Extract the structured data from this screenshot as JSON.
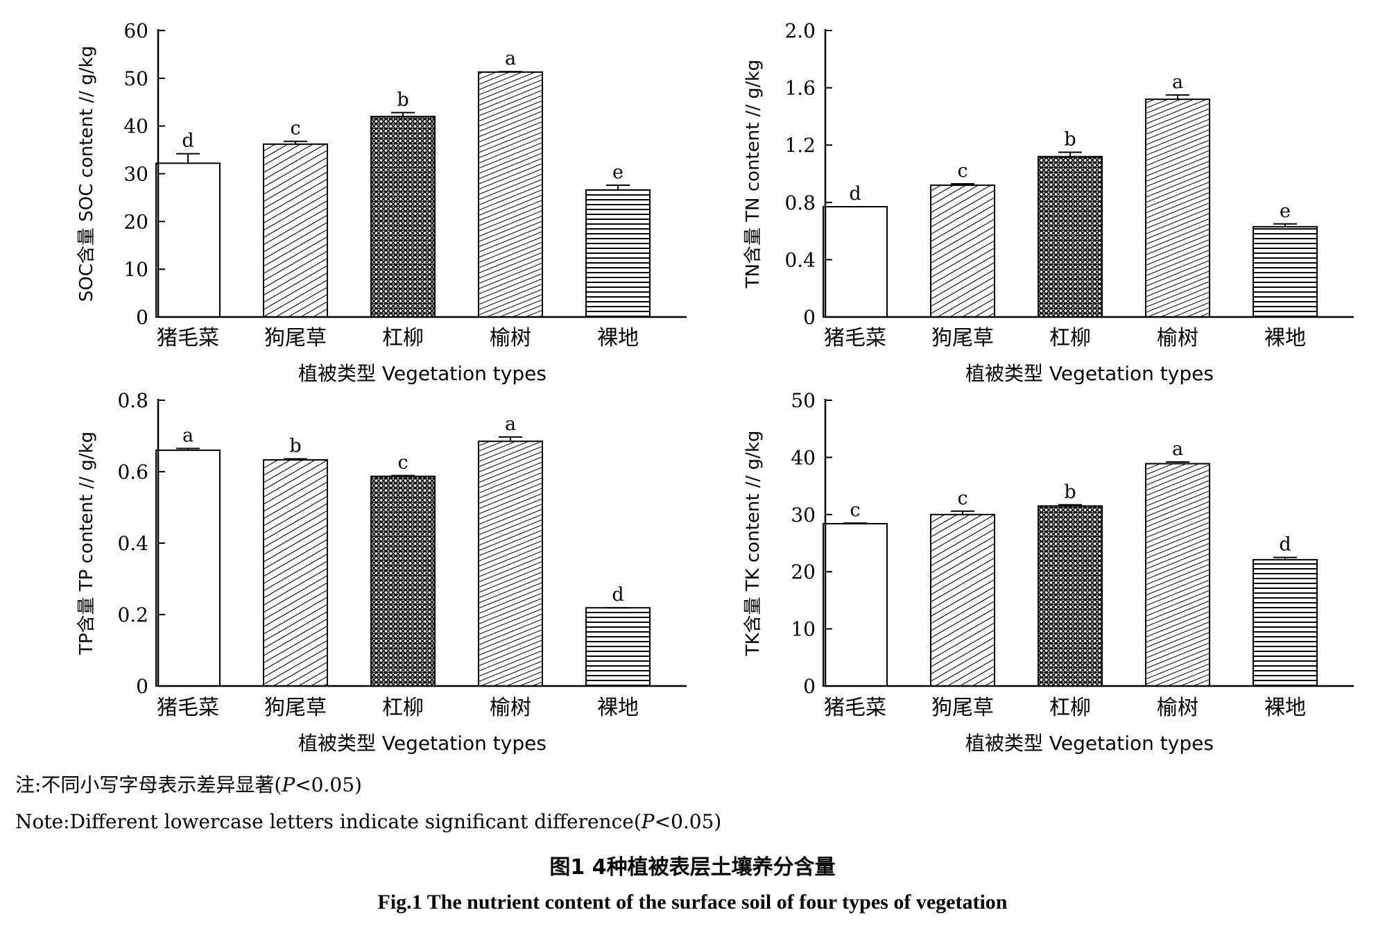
{
  "chart_data": [
    {
      "type": "bar",
      "ylabel": "SOC含量 SOC content // g/kg",
      "xlabel": "植被类型 Vegetation types",
      "categories": [
        "猪毛菜",
        "狗尾草",
        "杠柳",
        "榆树",
        "裸地"
      ],
      "values": [
        32.2,
        36.2,
        42.0,
        51.3,
        26.6
      ],
      "errors": [
        2.0,
        0.6,
        0.8,
        0.1,
        1.0
      ],
      "sig_labels": [
        "d",
        "c",
        "b",
        "a",
        "e"
      ],
      "ylim": [
        0,
        60
      ],
      "yticks": [
        "0",
        "10",
        "20",
        "30",
        "40",
        "50",
        "60"
      ],
      "ytick_values": [
        0,
        10,
        20,
        30,
        40,
        50,
        60
      ]
    },
    {
      "type": "bar",
      "ylabel": "TN含量 TN content // g/kg",
      "xlabel": "植被类型 Vegetation types",
      "categories": [
        "猪毛菜",
        "狗尾草",
        "杠柳",
        "榆树",
        "裸地"
      ],
      "values": [
        0.77,
        0.92,
        1.12,
        1.52,
        0.63
      ],
      "errors": [
        0.0,
        0.01,
        0.03,
        0.03,
        0.02
      ],
      "sig_labels": [
        "d",
        "c",
        "b",
        "a",
        "e"
      ],
      "ylim": [
        0,
        2.0
      ],
      "yticks": [
        "0",
        "0.4",
        "0.8",
        "1.2",
        "1.6",
        "2.0"
      ],
      "ytick_values": [
        0,
        0.4,
        0.8,
        1.2,
        1.6,
        2.0
      ]
    },
    {
      "type": "bar",
      "ylabel": "TP含量 TP content // g/kg",
      "xlabel": "植被类型 Vegetation types",
      "categories": [
        "猪毛菜",
        "狗尾草",
        "杠柳",
        "榆树",
        "裸地"
      ],
      "values": [
        0.66,
        0.633,
        0.587,
        0.685,
        0.219
      ],
      "errors": [
        0.005,
        0.003,
        0.002,
        0.012,
        0.0
      ],
      "sig_labels": [
        "a",
        "b",
        "c",
        "a",
        "d"
      ],
      "ylim": [
        0,
        0.8
      ],
      "yticks": [
        "0",
        "0.2",
        "0.4",
        "0.6",
        "0.8"
      ],
      "ytick_values": [
        0,
        0.2,
        0.4,
        0.6,
        0.8
      ]
    },
    {
      "type": "bar",
      "ylabel": "TK含量 TK content // g/kg",
      "xlabel": "植被类型 Vegetation types",
      "categories": [
        "猪毛菜",
        "狗尾草",
        "杠柳",
        "榆树",
        "裸地"
      ],
      "values": [
        28.4,
        30.0,
        31.5,
        38.9,
        22.1
      ],
      "errors": [
        0.1,
        0.6,
        0.2,
        0.3,
        0.4
      ],
      "sig_labels": [
        "c",
        "c",
        "b",
        "a",
        "d"
      ],
      "ylim": [
        0,
        50
      ],
      "yticks": [
        "0",
        "10",
        "20",
        "30",
        "40",
        "50"
      ],
      "ytick_values": [
        0,
        10,
        20,
        30,
        40,
        50
      ]
    }
  ],
  "note": {
    "zh_prefix": "注:不同小写字母表示差异显著(",
    "zh_p": "P",
    "zh_suffix": "<0.05)",
    "en_prefix": "Note:Different lowercase letters indicate significant difference(",
    "en_p": "P",
    "en_suffix": "<0.05)"
  },
  "caption": {
    "zh": "图1 4种植被表层土壤养分含量",
    "en": "Fig.1 The nutrient content of the surface soil of four types of vegetation"
  },
  "patterns": [
    "none",
    "diagonal-steep",
    "crosshatch",
    "diagonal-dense",
    "horizontal"
  ]
}
